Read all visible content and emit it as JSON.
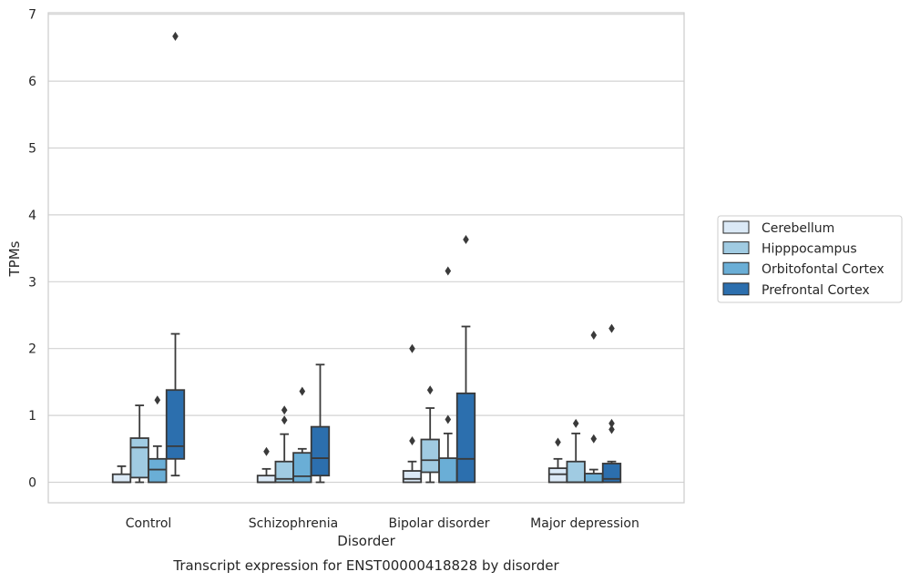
{
  "chart_data": {
    "type": "box",
    "title": "",
    "caption": "Transcript expression for ENST00000418828 by disorder",
    "xlabel": "Disorder",
    "ylabel": "TPMs",
    "ylim": [
      -0.3,
      7.0
    ],
    "yticks": [
      "0",
      "1",
      "2",
      "3",
      "4",
      "5",
      "6",
      "7"
    ],
    "grid": true,
    "legend_position": "right",
    "categories": [
      "Control",
      "Schizophrenia",
      "Bipolar disorder",
      "Major depression"
    ],
    "series": [
      {
        "name": "Cerebellum",
        "color": "#dbe9f6",
        "boxes": [
          {
            "min": 0,
            "q1": 0,
            "median": 0,
            "q3": 0.12,
            "max": 0.24,
            "outliers": []
          },
          {
            "min": 0,
            "q1": 0,
            "median": 0,
            "q3": 0.1,
            "max": 0.2,
            "outliers": [
              0.46
            ]
          },
          {
            "min": 0,
            "q1": 0,
            "median": 0.05,
            "q3": 0.17,
            "max": 0.31,
            "outliers": [
              0.62,
              2.0
            ]
          },
          {
            "min": 0,
            "q1": 0,
            "median": 0.12,
            "q3": 0.21,
            "max": 0.35,
            "outliers": [
              0.6
            ]
          }
        ]
      },
      {
        "name": "Hipppocampus",
        "color": "#a0cbe2",
        "boxes": [
          {
            "min": 0,
            "q1": 0.07,
            "median": 0.52,
            "q3": 0.66,
            "max": 1.15,
            "outliers": []
          },
          {
            "min": 0,
            "q1": 0,
            "median": 0.05,
            "q3": 0.31,
            "max": 0.72,
            "outliers": [
              0.93,
              1.08
            ]
          },
          {
            "min": 0,
            "q1": 0.15,
            "median": 0.33,
            "q3": 0.64,
            "max": 1.11,
            "outliers": [
              1.38
            ]
          },
          {
            "min": 0,
            "q1": 0,
            "median": 0,
            "q3": 0.31,
            "max": 0.73,
            "outliers": [
              0.88
            ]
          }
        ]
      },
      {
        "name": "Orbitofontal Cortex",
        "color": "#6aaed6",
        "boxes": [
          {
            "min": 0,
            "q1": 0,
            "median": 0.19,
            "q3": 0.35,
            "max": 0.54,
            "outliers": [
              1.23
            ]
          },
          {
            "min": 0,
            "q1": 0,
            "median": 0.09,
            "q3": 0.44,
            "max": 0.5,
            "outliers": [
              1.36
            ]
          },
          {
            "min": 0,
            "q1": 0,
            "median": 0,
            "q3": 0.36,
            "max": 0.73,
            "outliers": [
              0.94,
              3.16
            ]
          },
          {
            "min": 0,
            "q1": 0,
            "median": 0,
            "q3": 0.13,
            "max": 0.19,
            "outliers": [
              0.65,
              2.2
            ]
          }
        ]
      },
      {
        "name": "Prefrontal Cortex",
        "color": "#2c6fae",
        "boxes": [
          {
            "min": 0.1,
            "q1": 0.35,
            "median": 0.54,
            "q3": 1.38,
            "max": 2.22,
            "outliers": [
              6.67
            ]
          },
          {
            "min": 0,
            "q1": 0.1,
            "median": 0.36,
            "q3": 0.83,
            "max": 1.76,
            "outliers": []
          },
          {
            "min": 0,
            "q1": 0,
            "median": 0.35,
            "q3": 1.33,
            "max": 2.33,
            "outliers": [
              3.63
            ]
          },
          {
            "min": 0,
            "q1": 0,
            "median": 0.05,
            "q3": 0.28,
            "max": 0.31,
            "outliers": [
              0.79,
              0.88,
              2.3
            ]
          }
        ]
      }
    ]
  }
}
